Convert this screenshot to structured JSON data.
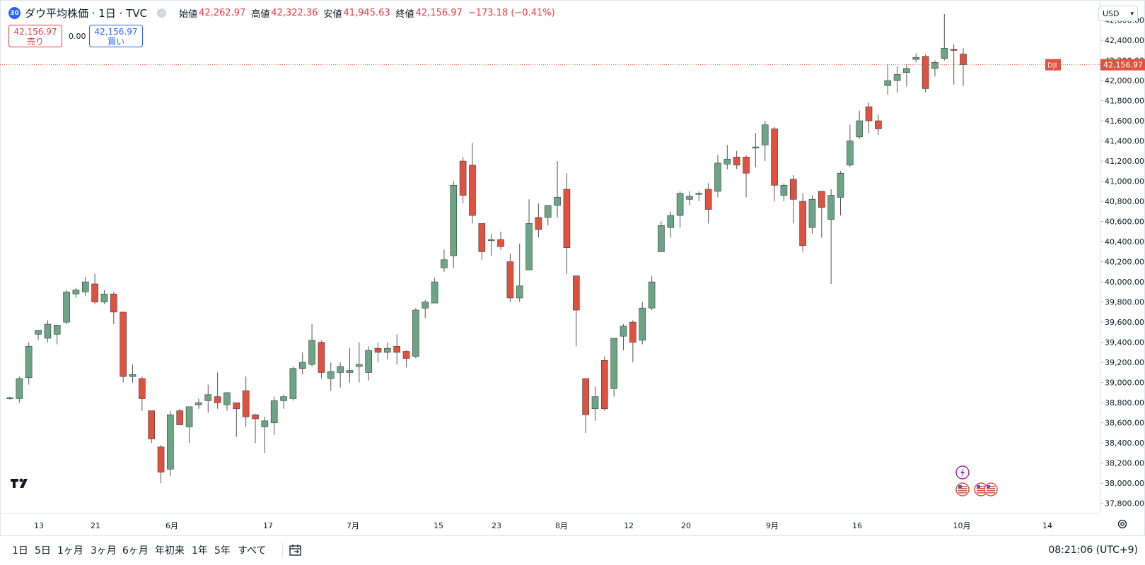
{
  "legend": {
    "badge": "30",
    "title": "ダウ平均株価 · 1日 · TVC",
    "open_label": "始値",
    "open": "42,262.97",
    "high_label": "高値",
    "high": "42,322.36",
    "low_label": "安値",
    "low": "41,945.63",
    "close_label": "終値",
    "close": "42,156.97",
    "change": "−173.18 (−0.41%)"
  },
  "trade": {
    "sell_price": "42,156.97",
    "sell_label": "売り",
    "spread": "0.00",
    "buy_price": "42,156.97",
    "buy_label": "買い"
  },
  "currency": "USD",
  "last_price": {
    "symbol": "DJI",
    "value": "42,156.97"
  },
  "colors": {
    "up": "#6ca583",
    "down": "#e0523f",
    "accent": "#2962ff",
    "price_line": "#e0523f"
  },
  "price_axis": {
    "ticks": [
      "42,600.00",
      "42,400.00",
      "42,200.00",
      "42,000.00",
      "41,800.00",
      "41,600.00",
      "41,400.00",
      "41,200.00",
      "41,000.00",
      "40,800.00",
      "40,600.00",
      "40,400.00",
      "40,200.00",
      "40,000.00",
      "39,800.00",
      "39,600.00",
      "39,400.00",
      "39,200.00",
      "39,000.00",
      "38,800.00",
      "38,600.00",
      "38,400.00",
      "38,200.00",
      "38,000.00",
      "37,800.00"
    ]
  },
  "time_axis": {
    "labels": [
      "13",
      "21",
      "6月",
      "17",
      "7月",
      "15",
      "23",
      "8月",
      "12",
      "20",
      "9月",
      "16",
      "10月",
      "14"
    ]
  },
  "ranges": [
    "1日",
    "5日",
    "1ヶ月",
    "3ヶ月",
    "6ヶ月",
    "年初来",
    "1年",
    "5年",
    "すべて"
  ],
  "clock": "08:21:06 (UTC+9)",
  "icons": {
    "logo": "tradingview-logo-icon",
    "compare": "calendar-arrow-icon",
    "settings": "gear-icon",
    "event": "lightning-icon",
    "flag": "us-flag-icon"
  },
  "chart_data": {
    "type": "candlestick",
    "title": "ダウ平均株価",
    "interval": "1日",
    "source": "TVC",
    "ylim": [
      37700,
      42800
    ],
    "candles": [
      [
        38840,
        38860,
        38830,
        38850
      ],
      [
        38840,
        39060,
        38800,
        39040
      ],
      [
        39050,
        39400,
        38980,
        39360
      ],
      [
        39480,
        39520,
        39420,
        39520
      ],
      [
        39440,
        39620,
        39400,
        39580
      ],
      [
        39480,
        39560,
        39380,
        39570
      ],
      [
        39600,
        39920,
        39580,
        39900
      ],
      [
        39880,
        39940,
        39840,
        39920
      ],
      [
        39900,
        40050,
        39860,
        40000
      ],
      [
        39980,
        40080,
        39780,
        39800
      ],
      [
        39800,
        39920,
        39780,
        39880
      ],
      [
        39880,
        39900,
        39580,
        39700
      ],
      [
        39700,
        39700,
        39000,
        39060
      ],
      [
        39060,
        39180,
        39000,
        39080
      ],
      [
        39040,
        39060,
        38720,
        38840
      ],
      [
        38720,
        38720,
        38400,
        38440
      ],
      [
        38360,
        38380,
        38000,
        38110
      ],
      [
        38140,
        38720,
        38070,
        38680
      ],
      [
        38720,
        38740,
        38580,
        38580
      ],
      [
        38560,
        38740,
        38400,
        38760
      ],
      [
        38780,
        38840,
        38740,
        38800
      ],
      [
        38820,
        38980,
        38700,
        38880
      ],
      [
        38860,
        39100,
        38740,
        38800
      ],
      [
        38780,
        38860,
        38720,
        38900
      ],
      [
        38800,
        38800,
        38460,
        38740
      ],
      [
        38920,
        39060,
        38560,
        38660
      ],
      [
        38680,
        38690,
        38400,
        38640
      ],
      [
        38560,
        38660,
        38300,
        38620
      ],
      [
        38600,
        38860,
        38480,
        38820
      ],
      [
        38820,
        38880,
        38740,
        38860
      ],
      [
        38840,
        39160,
        38820,
        39140
      ],
      [
        39140,
        39300,
        39080,
        39200
      ],
      [
        39180,
        39580,
        39160,
        39420
      ],
      [
        39400,
        39420,
        39040,
        39100
      ],
      [
        39040,
        39200,
        38920,
        39110
      ],
      [
        39100,
        39200,
        38950,
        39160
      ],
      [
        39100,
        39340,
        39000,
        39120
      ],
      [
        39160,
        39400,
        39000,
        39180
      ],
      [
        39100,
        39360,
        39020,
        39320
      ],
      [
        39340,
        39400,
        39200,
        39300
      ],
      [
        39300,
        39400,
        39230,
        39340
      ],
      [
        39360,
        39480,
        39180,
        39300
      ],
      [
        39310,
        39320,
        39150,
        39240
      ],
      [
        39260,
        39740,
        39240,
        39720
      ],
      [
        39740,
        39820,
        39640,
        39800
      ],
      [
        39790,
        40040,
        39800,
        40000
      ],
      [
        40140,
        40320,
        40100,
        40220
      ],
      [
        40260,
        41000,
        40140,
        40960
      ],
      [
        41200,
        41240,
        40780,
        40860
      ],
      [
        41160,
        41380,
        40580,
        40660
      ],
      [
        40580,
        40580,
        40220,
        40300
      ],
      [
        40420,
        40480,
        40260,
        40420
      ],
      [
        40420,
        40500,
        40320,
        40350
      ],
      [
        40200,
        40280,
        39800,
        39840
      ],
      [
        39840,
        40380,
        39800,
        39960
      ],
      [
        40120,
        40820,
        40120,
        40580
      ],
      [
        40640,
        40780,
        40440,
        40520
      ],
      [
        40640,
        40740,
        40560,
        40760
      ],
      [
        40760,
        41200,
        40640,
        40840
      ],
      [
        40920,
        41080,
        40080,
        40340
      ],
      [
        40060,
        40060,
        39360,
        39720
      ],
      [
        39040,
        39020,
        38500,
        38680
      ],
      [
        38740,
        38960,
        38620,
        38860
      ],
      [
        39220,
        39260,
        38720,
        38740
      ],
      [
        38940,
        39440,
        38860,
        39440
      ],
      [
        39460,
        39580,
        39320,
        39560
      ],
      [
        39600,
        39620,
        39200,
        39400
      ],
      [
        39420,
        39800,
        39380,
        39740
      ],
      [
        39740,
        40060,
        39720,
        40000
      ],
      [
        40300,
        40600,
        40300,
        40560
      ],
      [
        40540,
        40700,
        40440,
        40660
      ],
      [
        40660,
        40900,
        40540,
        40880
      ],
      [
        40820,
        40900,
        40760,
        40850
      ],
      [
        40880,
        40900,
        40800,
        40880
      ],
      [
        40920,
        40980,
        40580,
        40720
      ],
      [
        40900,
        41260,
        40840,
        41180
      ],
      [
        41170,
        41360,
        41120,
        41220
      ],
      [
        41240,
        41300,
        41120,
        41160
      ],
      [
        41240,
        41260,
        40840,
        41080
      ],
      [
        41340,
        41480,
        41140,
        41340
      ],
      [
        41360,
        41600,
        41200,
        41560
      ],
      [
        41520,
        41540,
        40800,
        40960
      ],
      [
        40860,
        40980,
        40800,
        40960
      ],
      [
        41020,
        41060,
        40580,
        40820
      ],
      [
        40800,
        40880,
        40300,
        40360
      ],
      [
        40540,
        40860,
        40480,
        40820
      ],
      [
        40900,
        40900,
        40440,
        40740
      ],
      [
        40620,
        40920,
        39980,
        40860
      ],
      [
        40840,
        41100,
        40660,
        41080
      ],
      [
        41160,
        41560,
        41140,
        41400
      ],
      [
        41440,
        41700,
        41420,
        41600
      ],
      [
        41740,
        41780,
        41480,
        41600
      ],
      [
        41600,
        41660,
        41460,
        41520
      ],
      [
        41950,
        42160,
        41860,
        42000
      ],
      [
        42000,
        42140,
        41880,
        42060
      ],
      [
        42080,
        42160,
        41940,
        42120
      ],
      [
        42210,
        42270,
        42180,
        42230
      ],
      [
        42240,
        42260,
        41880,
        41920
      ],
      [
        42120,
        42200,
        42040,
        42180
      ],
      [
        42220,
        42660,
        42200,
        42320
      ],
      [
        42310,
        42360,
        41960,
        42300
      ],
      [
        42262.97,
        42322.36,
        41945.63,
        42156.97
      ]
    ]
  }
}
